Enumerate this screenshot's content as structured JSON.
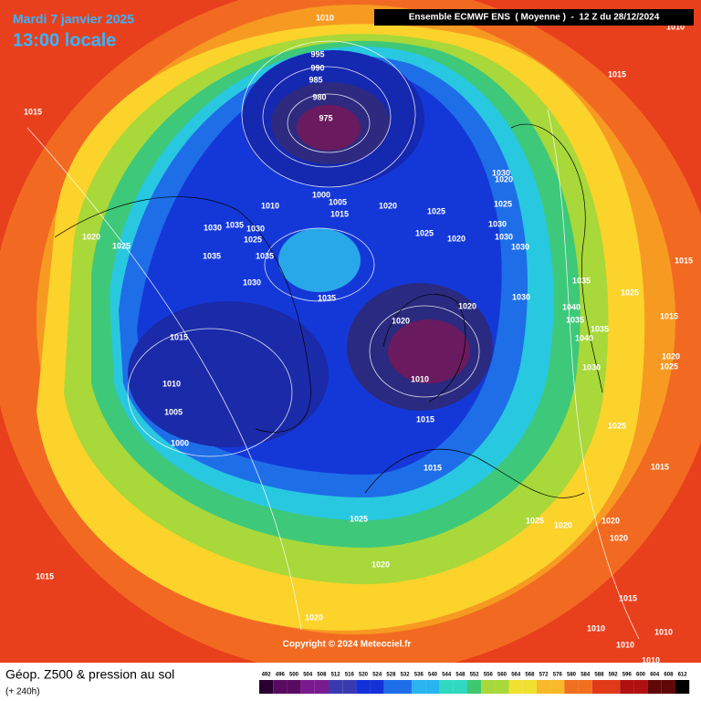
{
  "header": {
    "date": "Mardi 7 janvier 2025",
    "time": "13:00 locale",
    "model": "Ensemble ECMWF ENS  ( Moyenne )  -  12 Z du 28/12/2024"
  },
  "footer": {
    "title": "Géop. Z500 & pression au sol",
    "subtitle": "(+ 240h)",
    "copyright": "Copyright © 2024 Meteociel.fr"
  },
  "scale": {
    "labels": [
      492,
      496,
      500,
      504,
      508,
      512,
      516,
      520,
      524,
      528,
      532,
      536,
      540,
      544,
      548,
      552,
      556,
      560,
      564,
      568,
      572,
      576,
      580,
      584,
      588,
      592,
      596,
      600,
      604,
      608,
      612
    ]
  },
  "isobar_labels": [
    1010,
    1010,
    1015,
    1015,
    995,
    990,
    985,
    980,
    975,
    1000,
    1005,
    1015,
    1010,
    1020,
    1030,
    1020,
    1025,
    1030,
    1030,
    1030,
    1025,
    1025,
    1020,
    1020,
    1025,
    1030,
    1035,
    1030,
    1025,
    1035,
    1035,
    1030,
    1035,
    1020,
    1020,
    1030,
    1035,
    1025,
    1015,
    1040,
    1035,
    1035,
    1040,
    1015,
    1010,
    1010,
    1005,
    1000,
    1015,
    1015,
    1030,
    1025,
    1015,
    1025,
    1025,
    1020,
    1020,
    1020,
    1020,
    1015,
    1020,
    1015,
    1010,
    1010,
    1010,
    1010,
    1020,
    1025,
    1015
  ]
}
